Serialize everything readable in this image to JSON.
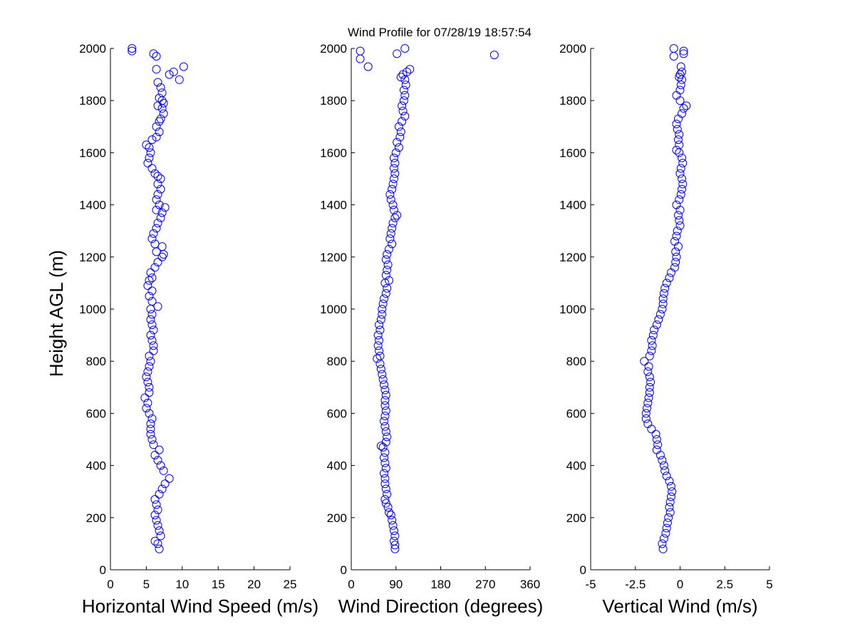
{
  "title": "Wind Profile for  07/28/19 18:57:54",
  "ylabel": "Height AGL (m)",
  "marker_color": "#0000ff",
  "chart_data": [
    {
      "type": "scatter",
      "xlabel": "Horizontal Wind Speed (m/s)",
      "ylabel": "Height AGL (m)",
      "xlim": [
        0,
        25
      ],
      "ylim": [
        0,
        2000
      ],
      "xticks": [
        "0",
        "5",
        "10",
        "15",
        "20",
        "25"
      ],
      "yticks": [
        "0",
        "200",
        "400",
        "600",
        "800",
        "1000",
        "1200",
        "1400",
        "1600",
        "1800",
        "2000"
      ],
      "points": [
        [
          6.8,
          80
        ],
        [
          6.6,
          100
        ],
        [
          6.2,
          110
        ],
        [
          7.0,
          130
        ],
        [
          6.8,
          150
        ],
        [
          6.6,
          170
        ],
        [
          6.4,
          190
        ],
        [
          6.2,
          210
        ],
        [
          6.6,
          230
        ],
        [
          6.4,
          250
        ],
        [
          6.2,
          270
        ],
        [
          6.8,
          290
        ],
        [
          7.2,
          310
        ],
        [
          7.6,
          330
        ],
        [
          8.2,
          350
        ],
        [
          7.4,
          380
        ],
        [
          7.0,
          400
        ],
        [
          6.6,
          420
        ],
        [
          6.2,
          440
        ],
        [
          6.8,
          460
        ],
        [
          6.0,
          480
        ],
        [
          5.8,
          500
        ],
        [
          5.6,
          520
        ],
        [
          5.6,
          540
        ],
        [
          5.6,
          560
        ],
        [
          5.8,
          580
        ],
        [
          5.4,
          600
        ],
        [
          5.0,
          620
        ],
        [
          5.2,
          640
        ],
        [
          4.8,
          660
        ],
        [
          5.4,
          680
        ],
        [
          5.4,
          700
        ],
        [
          5.2,
          720
        ],
        [
          5.0,
          740
        ],
        [
          5.2,
          760
        ],
        [
          5.4,
          780
        ],
        [
          5.6,
          800
        ],
        [
          5.4,
          820
        ],
        [
          6.0,
          840
        ],
        [
          6.0,
          860
        ],
        [
          5.8,
          880
        ],
        [
          5.6,
          900
        ],
        [
          6.0,
          920
        ],
        [
          5.8,
          940
        ],
        [
          5.6,
          960
        ],
        [
          5.8,
          980
        ],
        [
          5.6,
          1000
        ],
        [
          6.6,
          1010
        ],
        [
          5.8,
          1030
        ],
        [
          5.4,
          1050
        ],
        [
          5.8,
          1070
        ],
        [
          5.2,
          1090
        ],
        [
          5.4,
          1110
        ],
        [
          5.8,
          1120
        ],
        [
          5.6,
          1140
        ],
        [
          6.2,
          1160
        ],
        [
          6.6,
          1180
        ],
        [
          7.2,
          1200
        ],
        [
          7.4,
          1210
        ],
        [
          6.4,
          1220
        ],
        [
          7.2,
          1240
        ],
        [
          6.2,
          1250
        ],
        [
          5.8,
          1270
        ],
        [
          6.0,
          1290
        ],
        [
          6.4,
          1310
        ],
        [
          6.6,
          1330
        ],
        [
          7.0,
          1350
        ],
        [
          7.2,
          1370
        ],
        [
          7.6,
          1390
        ],
        [
          6.4,
          1380
        ],
        [
          6.8,
          1400
        ],
        [
          6.4,
          1420
        ],
        [
          6.6,
          1440
        ],
        [
          7.0,
          1460
        ],
        [
          6.6,
          1480
        ],
        [
          7.0,
          1500
        ],
        [
          6.6,
          1510
        ],
        [
          6.2,
          1520
        ],
        [
          5.8,
          1540
        ],
        [
          5.2,
          1560
        ],
        [
          5.4,
          1580
        ],
        [
          5.6,
          1600
        ],
        [
          5.4,
          1620
        ],
        [
          5.0,
          1630
        ],
        [
          5.8,
          1650
        ],
        [
          6.4,
          1660
        ],
        [
          6.8,
          1680
        ],
        [
          6.4,
          1700
        ],
        [
          6.8,
          1720
        ],
        [
          7.0,
          1730
        ],
        [
          7.4,
          1750
        ],
        [
          7.2,
          1770
        ],
        [
          6.6,
          1780
        ],
        [
          7.4,
          1790
        ],
        [
          7.2,
          1800
        ],
        [
          6.8,
          1810
        ],
        [
          7.2,
          1830
        ],
        [
          7.0,
          1850
        ],
        [
          6.6,
          1870
        ],
        [
          9.6,
          1880
        ],
        [
          8.2,
          1900
        ],
        [
          8.8,
          1910
        ],
        [
          10.2,
          1930
        ],
        [
          6.4,
          1920
        ],
        [
          6.4,
          1970
        ],
        [
          6.0,
          1980
        ],
        [
          3.0,
          1990
        ],
        [
          3.0,
          2000
        ]
      ]
    },
    {
      "type": "scatter",
      "xlabel": "Wind Direction (degrees)",
      "ylabel": "",
      "xlim": [
        0,
        360
      ],
      "ylim": [
        0,
        2000
      ],
      "xticks": [
        "0",
        "90",
        "180",
        "270",
        "360"
      ],
      "yticks": [
        "0",
        "200",
        "400",
        "600",
        "800",
        "1000",
        "1200",
        "1400",
        "1600",
        "1800",
        "2000"
      ],
      "points": [
        [
          88,
          80
        ],
        [
          88,
          95
        ],
        [
          86,
          110
        ],
        [
          88,
          130
        ],
        [
          86,
          150
        ],
        [
          84,
          170
        ],
        [
          82,
          190
        ],
        [
          80,
          210
        ],
        [
          76,
          220
        ],
        [
          74,
          240
        ],
        [
          70,
          255
        ],
        [
          68,
          270
        ],
        [
          72,
          290
        ],
        [
          70,
          310
        ],
        [
          68,
          330
        ],
        [
          68,
          350
        ],
        [
          66,
          370
        ],
        [
          70,
          390
        ],
        [
          68,
          410
        ],
        [
          66,
          430
        ],
        [
          68,
          450
        ],
        [
          64,
          470
        ],
        [
          60,
          475
        ],
        [
          70,
          490
        ],
        [
          72,
          510
        ],
        [
          70,
          530
        ],
        [
          68,
          550
        ],
        [
          66,
          570
        ],
        [
          68,
          590
        ],
        [
          70,
          610
        ],
        [
          68,
          630
        ],
        [
          68,
          650
        ],
        [
          70,
          670
        ],
        [
          68,
          690
        ],
        [
          66,
          710
        ],
        [
          64,
          730
        ],
        [
          62,
          750
        ],
        [
          60,
          770
        ],
        [
          58,
          790
        ],
        [
          52,
          810
        ],
        [
          58,
          820
        ],
        [
          56,
          840
        ],
        [
          54,
          860
        ],
        [
          56,
          880
        ],
        [
          54,
          900
        ],
        [
          58,
          920
        ],
        [
          56,
          940
        ],
        [
          60,
          960
        ],
        [
          62,
          980
        ],
        [
          62,
          1000
        ],
        [
          64,
          1020
        ],
        [
          66,
          1040
        ],
        [
          70,
          1060
        ],
        [
          72,
          1080
        ],
        [
          68,
          1100
        ],
        [
          76,
          1110
        ],
        [
          70,
          1130
        ],
        [
          72,
          1150
        ],
        [
          74,
          1170
        ],
        [
          70,
          1190
        ],
        [
          72,
          1210
        ],
        [
          76,
          1230
        ],
        [
          82,
          1250
        ],
        [
          78,
          1270
        ],
        [
          80,
          1290
        ],
        [
          82,
          1310
        ],
        [
          84,
          1330
        ],
        [
          88,
          1350
        ],
        [
          92,
          1360
        ],
        [
          86,
          1380
        ],
        [
          84,
          1400
        ],
        [
          80,
          1420
        ],
        [
          78,
          1440
        ],
        [
          82,
          1460
        ],
        [
          84,
          1480
        ],
        [
          86,
          1500
        ],
        [
          88,
          1520
        ],
        [
          86,
          1540
        ],
        [
          88,
          1560
        ],
        [
          86,
          1580
        ],
        [
          90,
          1600
        ],
        [
          96,
          1620
        ],
        [
          92,
          1640
        ],
        [
          98,
          1660
        ],
        [
          100,
          1680
        ],
        [
          96,
          1700
        ],
        [
          102,
          1720
        ],
        [
          108,
          1740
        ],
        [
          104,
          1760
        ],
        [
          102,
          1780
        ],
        [
          106,
          1800
        ],
        [
          108,
          1820
        ],
        [
          106,
          1840
        ],
        [
          110,
          1860
        ],
        [
          108,
          1880
        ],
        [
          100,
          1890
        ],
        [
          104,
          1900
        ],
        [
          112,
          1910
        ],
        [
          118,
          1920
        ],
        [
          34,
          1930
        ],
        [
          18,
          1960
        ],
        [
          288,
          1975
        ],
        [
          92,
          1980
        ],
        [
          18,
          1990
        ],
        [
          108,
          2000
        ]
      ]
    },
    {
      "type": "scatter",
      "xlabel": "Vertical Wind (m/s)",
      "ylabel": "",
      "xlim": [
        -5,
        5
      ],
      "ylim": [
        0,
        2000
      ],
      "xticks": [
        "-5",
        "-2.5",
        "0",
        "2.5",
        "5"
      ],
      "yticks": [
        "0",
        "200",
        "400",
        "600",
        "800",
        "1000",
        "1200",
        "1400",
        "1600",
        "1800",
        "2000"
      ],
      "points": [
        [
          -0.95,
          80
        ],
        [
          -1.0,
          100
        ],
        [
          -0.9,
          120
        ],
        [
          -0.8,
          140
        ],
        [
          -0.75,
          160
        ],
        [
          -0.7,
          180
        ],
        [
          -0.65,
          200
        ],
        [
          -0.55,
          220
        ],
        [
          -0.6,
          240
        ],
        [
          -0.55,
          260
        ],
        [
          -0.5,
          280
        ],
        [
          -0.45,
          300
        ],
        [
          -0.5,
          320
        ],
        [
          -0.6,
          340
        ],
        [
          -0.75,
          360
        ],
        [
          -0.85,
          380
        ],
        [
          -0.9,
          400
        ],
        [
          -1.0,
          420
        ],
        [
          -1.1,
          440
        ],
        [
          -1.3,
          460
        ],
        [
          -1.25,
          480
        ],
        [
          -1.3,
          500
        ],
        [
          -1.35,
          520
        ],
        [
          -1.6,
          540
        ],
        [
          -1.8,
          560
        ],
        [
          -1.9,
          580
        ],
        [
          -1.9,
          600
        ],
        [
          -1.85,
          620
        ],
        [
          -1.8,
          640
        ],
        [
          -1.75,
          660
        ],
        [
          -1.7,
          680
        ],
        [
          -1.7,
          700
        ],
        [
          -1.65,
          720
        ],
        [
          -1.7,
          740
        ],
        [
          -1.8,
          760
        ],
        [
          -1.75,
          780
        ],
        [
          -2.0,
          800
        ],
        [
          -1.7,
          820
        ],
        [
          -1.6,
          840
        ],
        [
          -1.55,
          860
        ],
        [
          -1.6,
          880
        ],
        [
          -1.5,
          900
        ],
        [
          -1.45,
          920
        ],
        [
          -1.3,
          940
        ],
        [
          -1.2,
          960
        ],
        [
          -1.1,
          980
        ],
        [
          -1.0,
          1000
        ],
        [
          -0.95,
          1020
        ],
        [
          -0.95,
          1040
        ],
        [
          -0.9,
          1060
        ],
        [
          -0.85,
          1080
        ],
        [
          -0.75,
          1100
        ],
        [
          -0.6,
          1120
        ],
        [
          -0.5,
          1140
        ],
        [
          -0.3,
          1160
        ],
        [
          -0.25,
          1180
        ],
        [
          -0.2,
          1200
        ],
        [
          -0.25,
          1220
        ],
        [
          -0.1,
          1240
        ],
        [
          -0.3,
          1260
        ],
        [
          -0.2,
          1280
        ],
        [
          -0.15,
          1300
        ],
        [
          0.0,
          1320
        ],
        [
          -0.05,
          1340
        ],
        [
          -0.1,
          1360
        ],
        [
          0.0,
          1380
        ],
        [
          -0.2,
          1400
        ],
        [
          -0.05,
          1420
        ],
        [
          0.05,
          1440
        ],
        [
          0.1,
          1460
        ],
        [
          0.15,
          1480
        ],
        [
          0.1,
          1500
        ],
        [
          0.0,
          1520
        ],
        [
          0.05,
          1540
        ],
        [
          0.15,
          1560
        ],
        [
          0.1,
          1580
        ],
        [
          -0.05,
          1600
        ],
        [
          -0.2,
          1610
        ],
        [
          -0.05,
          1630
        ],
        [
          -0.1,
          1650
        ],
        [
          -0.05,
          1670
        ],
        [
          -0.15,
          1690
        ],
        [
          -0.2,
          1710
        ],
        [
          -0.1,
          1730
        ],
        [
          0.1,
          1750
        ],
        [
          0.2,
          1770
        ],
        [
          0.35,
          1780
        ],
        [
          0.0,
          1800
        ],
        [
          -0.2,
          1820
        ],
        [
          0.0,
          1840
        ],
        [
          0.05,
          1860
        ],
        [
          0.1,
          1880
        ],
        [
          -0.05,
          1890
        ],
        [
          0.0,
          1900
        ],
        [
          0.1,
          1910
        ],
        [
          0.05,
          1930
        ],
        [
          -0.35,
          1970
        ],
        [
          0.2,
          1980
        ],
        [
          0.2,
          1990
        ],
        [
          -0.35,
          2000
        ]
      ]
    }
  ]
}
